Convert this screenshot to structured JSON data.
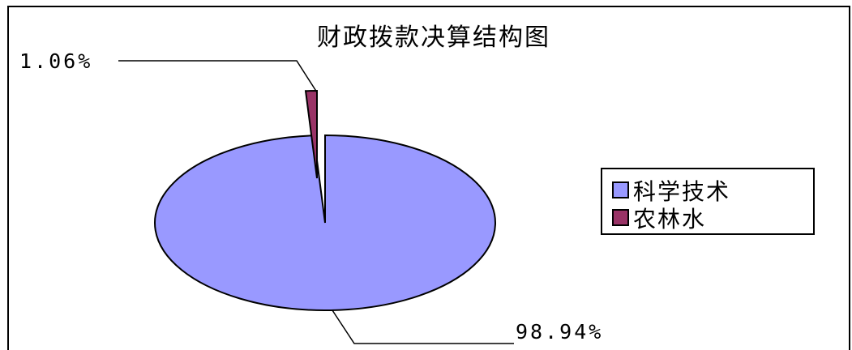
{
  "chart_data": {
    "type": "pie",
    "title": "财政拨款决算结构图",
    "categories": [
      "科学技术",
      "农林水"
    ],
    "values": [
      98.94,
      1.06
    ],
    "data_labels": [
      "98.94%",
      "1.06%"
    ],
    "legend_position": "right",
    "series_colors": [
      "#9999ff",
      "#993366"
    ]
  }
}
